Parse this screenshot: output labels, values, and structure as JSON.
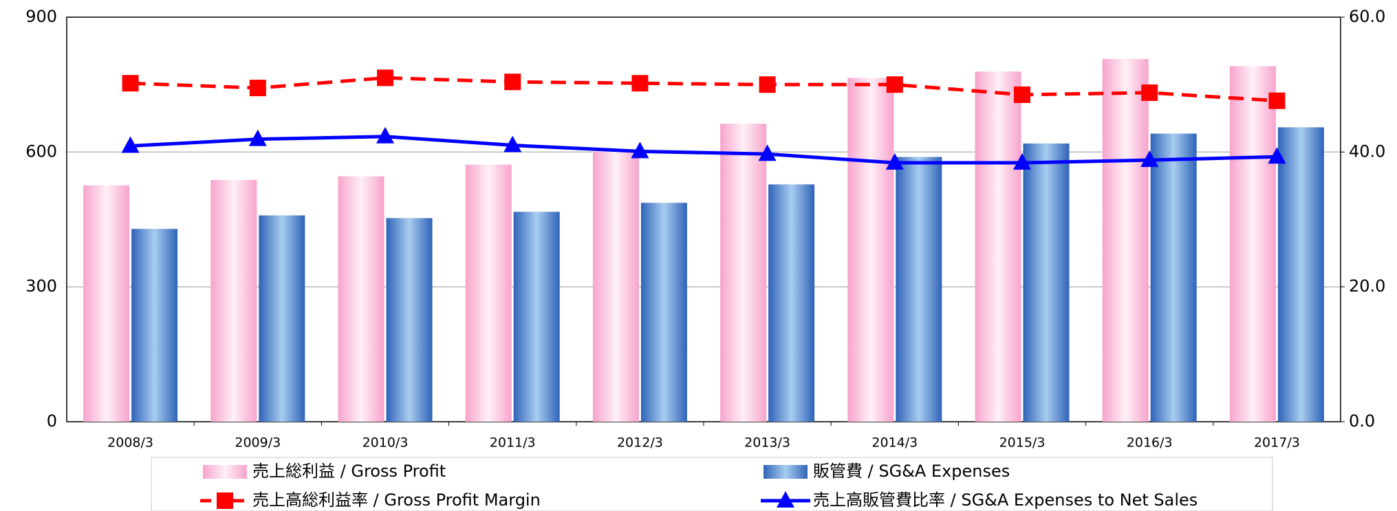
{
  "chart_data": {
    "type": "bar",
    "categories": [
      "2008/3",
      "2009/3",
      "2010/3",
      "2011/3",
      "2012/3",
      "2013/3",
      "2014/3",
      "2015/3",
      "2016/3",
      "2017/3"
    ],
    "series": [
      {
        "name": "売上総利益 / Gross Profit",
        "type": "bar",
        "color": "#f9a8cf",
        "values": [
          526,
          538,
          546,
          572,
          601,
          663,
          765,
          779,
          807,
          791
        ]
      },
      {
        "name": "販管費 / SG&A Expenses",
        "type": "bar",
        "color": "#3a78c9",
        "values": [
          429,
          459,
          453,
          467,
          487,
          528,
          589,
          619,
          641,
          655
        ]
      },
      {
        "name": "売上高総利益率 / Gross Profit Margin",
        "type": "line",
        "axis": "y2",
        "color": "#ff0000",
        "dashed": true,
        "marker": "square",
        "values": [
          50.2,
          49.5,
          51.0,
          50.4,
          50.2,
          50.0,
          50.0,
          48.5,
          48.8,
          47.6
        ]
      },
      {
        "name": "売上高販管費比率 / SG&A Expenses to Net Sales",
        "type": "line",
        "axis": "y2",
        "color": "#0000ff",
        "dashed": false,
        "marker": "triangle",
        "values": [
          40.9,
          41.9,
          42.3,
          41.0,
          40.1,
          39.7,
          38.4,
          38.4,
          38.8,
          39.3
        ]
      }
    ],
    "ylim": [
      0,
      900
    ],
    "yticks": [
      0,
      300,
      600,
      900
    ],
    "y2lim": [
      0,
      60
    ],
    "y2ticks": [
      {
        "value": 0,
        "label": "0.0"
      },
      {
        "value": 20,
        "label": "20.0"
      },
      {
        "value": 40,
        "label": "40.0"
      },
      {
        "value": 60,
        "label": "60.0"
      }
    ],
    "grid": true,
    "legend": "bottom"
  }
}
